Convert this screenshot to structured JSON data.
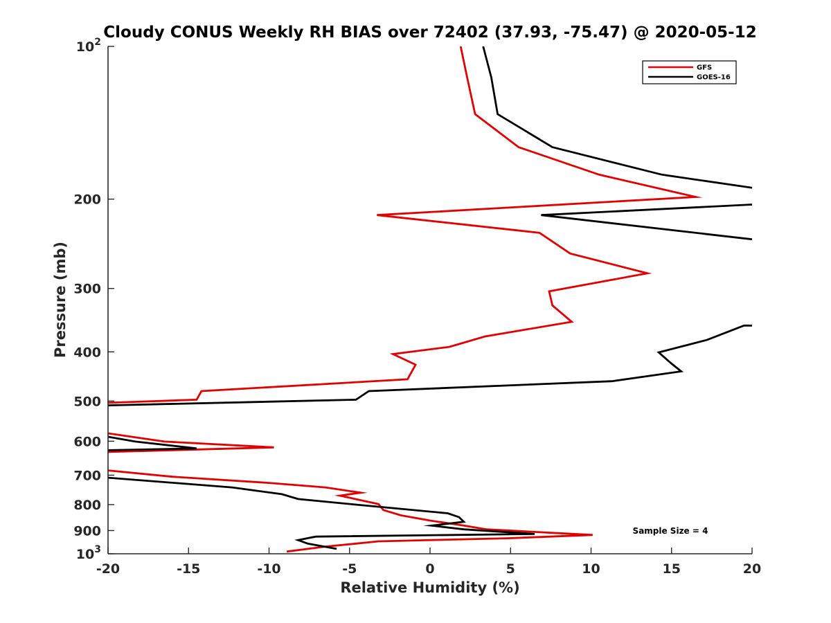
{
  "chart_data": {
    "type": "line",
    "title": "Cloudy CONUS Weekly RH BIAS over 72402 (37.93, -75.47) @ 2020-05-12",
    "xlabel": "Relative Humidity (%)",
    "ylabel": "Pressure (mb)",
    "xlim": [
      -20,
      20
    ],
    "ylim": [
      100,
      1000
    ],
    "yscale": "log",
    "y_reversed": true,
    "grid": false,
    "legend_position": "top-right",
    "x_ticks": [
      -20,
      -15,
      -10,
      -5,
      0,
      5,
      10,
      15,
      20
    ],
    "x_tick_labels": [
      "-20",
      "-15",
      "-10",
      "-5",
      "0",
      "5",
      "10",
      "15",
      "20"
    ],
    "y_ticks": [
      100,
      200,
      300,
      400,
      500,
      600,
      700,
      800,
      900,
      1000
    ],
    "y_tick_labels": [
      {
        "base": "10",
        "exp": "2"
      },
      {
        "base": "200",
        "exp": ""
      },
      {
        "base": "300",
        "exp": ""
      },
      {
        "base": "400",
        "exp": ""
      },
      {
        "base": "500",
        "exp": ""
      },
      {
        "base": "600",
        "exp": ""
      },
      {
        "base": "700",
        "exp": ""
      },
      {
        "base": "800",
        "exp": ""
      },
      {
        "base": "900",
        "exp": ""
      },
      {
        "base": "10",
        "exp": "3"
      }
    ],
    "annotation": "Sample Size = 4",
    "series": [
      {
        "name": "GFS",
        "color": "#e00000",
        "segments": [
          [
            [
              1.9,
              100
            ],
            [
              2.3,
              115
            ],
            [
              2.8,
              136
            ],
            [
              5.5,
              158
            ],
            [
              10.5,
              179
            ],
            [
              16.5,
              198
            ],
            [
              -3.3,
              215
            ],
            [
              6.8,
              233
            ],
            [
              8.7,
              256
            ],
            [
              13.5,
              280
            ],
            [
              7.4,
              304
            ],
            [
              7.6,
              324
            ],
            [
              8.8,
              349
            ],
            [
              3.4,
              373
            ],
            [
              1.2,
              391
            ],
            [
              -2.3,
              404
            ],
            [
              -0.9,
              424
            ],
            [
              -1.4,
              453
            ],
            [
              -14.2,
              478
            ],
            [
              -14.5,
              497
            ],
            [
              -20,
              504
            ]
          ],
          [
            [
              -20,
              579
            ],
            [
              -16.5,
              601
            ],
            [
              -9.7,
              617
            ],
            [
              -20,
              630
            ]
          ],
          [
            [
              -20,
              685
            ],
            [
              -16,
              705
            ],
            [
              -10,
              725
            ],
            [
              -6.5,
              740
            ],
            [
              -4.3,
              758
            ],
            [
              -5.6,
              768
            ],
            [
              -3.2,
              798
            ],
            [
              -2.9,
              820
            ],
            [
              -1.8,
              840
            ],
            [
              0,
              860
            ],
            [
              2.1,
              880
            ],
            [
              3.5,
              895
            ],
            [
              10.1,
              918
            ],
            [
              4.8,
              932
            ],
            [
              -3.2,
              945
            ],
            [
              -4.6,
              955
            ],
            [
              -6.5,
              968
            ],
            [
              -8.9,
              990
            ]
          ]
        ]
      },
      {
        "name": "GOES-16",
        "color": "#000000",
        "segments": [
          [
            [
              3.3,
              100
            ],
            [
              3.8,
              115
            ],
            [
              4.2,
              136
            ],
            [
              7.6,
              158
            ],
            [
              14.4,
              179
            ],
            [
              20,
              190
            ]
          ],
          [
            [
              20,
              205
            ],
            [
              6.9,
              215
            ],
            [
              20,
              240
            ]
          ],
          [
            [
              20,
              355
            ],
            [
              19.5,
              355
            ],
            [
              17.2,
              379
            ],
            [
              14.2,
              401
            ],
            [
              15.0,
              422
            ],
            [
              15.6,
              437
            ],
            [
              11.3,
              457
            ],
            [
              -3.8,
              478
            ],
            [
              -4.6,
              497
            ],
            [
              -20,
              510
            ]
          ],
          [
            [
              -20,
              588
            ],
            [
              -18.3,
              601
            ],
            [
              -14.5,
              620
            ],
            [
              -20,
              625
            ]
          ],
          [
            [
              -20,
              708
            ],
            [
              -12.3,
              740
            ],
            [
              -9.2,
              763
            ],
            [
              -8.2,
              780
            ],
            [
              -4.6,
              800
            ],
            [
              1.1,
              832
            ],
            [
              1.8,
              847
            ],
            [
              2.1,
              865
            ],
            [
              0.1,
              880
            ],
            [
              2.1,
              895
            ],
            [
              6.5,
              914
            ],
            [
              -7.1,
              925
            ],
            [
              -8.2,
              940
            ],
            [
              -7.6,
              955
            ],
            [
              -5.8,
              978
            ]
          ]
        ]
      }
    ]
  }
}
